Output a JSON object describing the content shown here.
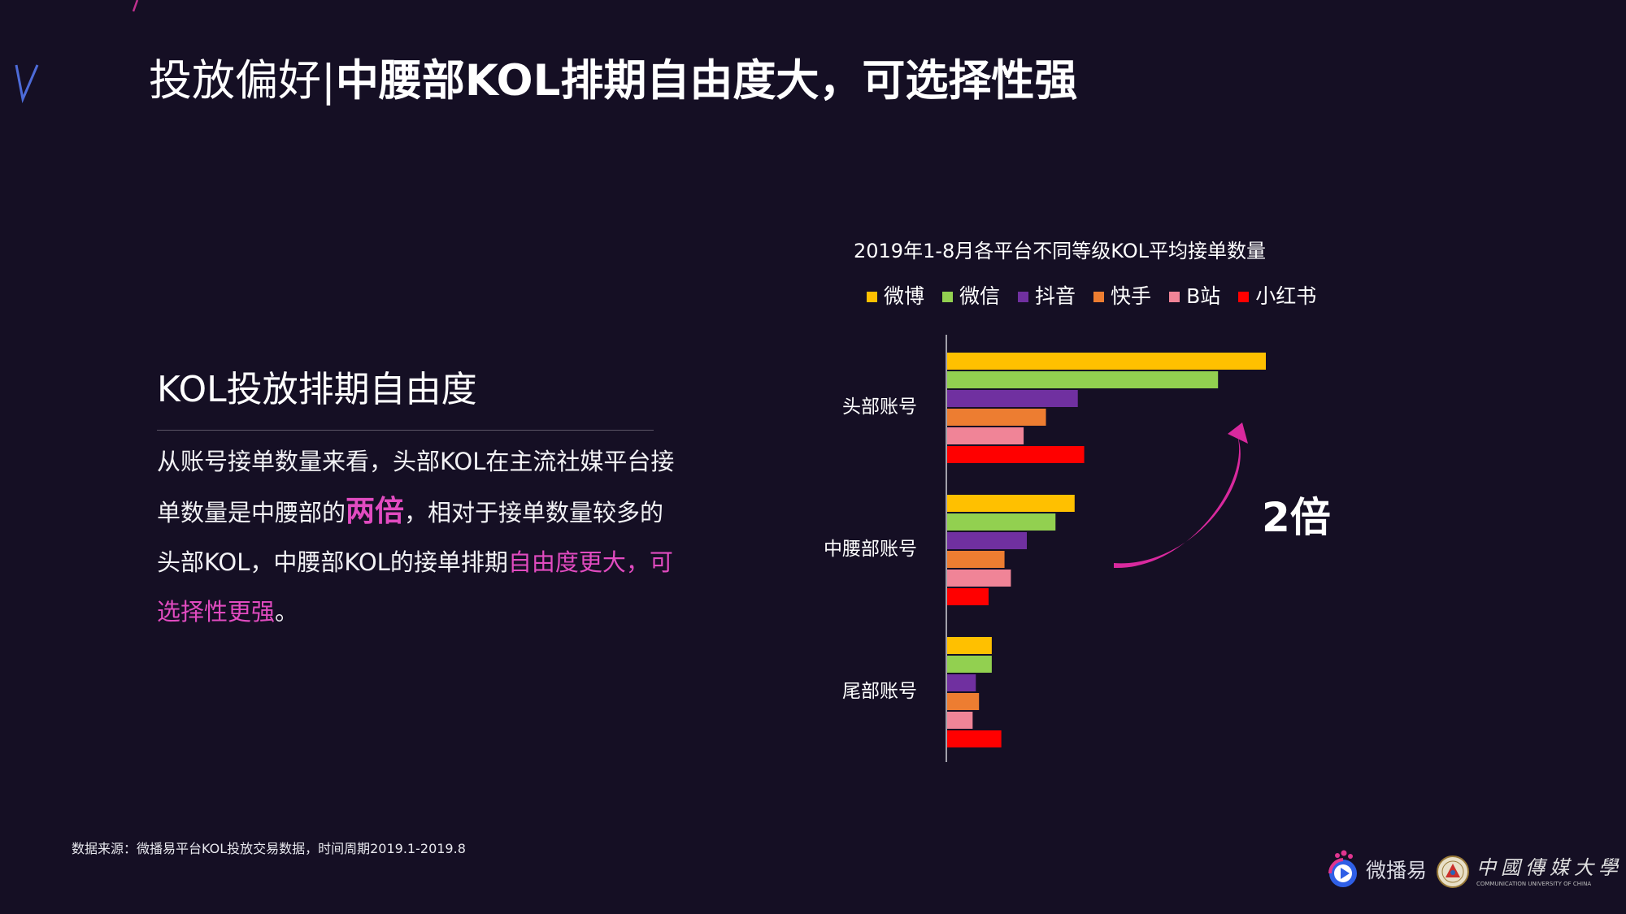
{
  "title": {
    "prefix": "投放偏好|",
    "main": "中腰部KOL排期自由度大，可选择性强"
  },
  "section": {
    "heading": "KOL投放排期自由度",
    "text_1": "从账号接单数量来看，头部KOL在主流社媒平台接单数量是中腰部的",
    "highlight_1": "两倍",
    "text_2": "，相对于接单数量较多的头部KOL，中腰部KOL的接单排期",
    "highlight_2": "自由度更大，可选择性更强",
    "text_3": "。"
  },
  "annotation": {
    "multiplier": "2倍",
    "arrow_color": "#d9299e"
  },
  "source": "数据来源：微播易平台KOL投放交易数据，时间周期2019.1-2019.8",
  "logos": {
    "weiboyi": "微播易",
    "cuc_cn": "中國傳媒大學",
    "cuc_en": "COMMUNICATION UNIVERSITY OF CHINA"
  },
  "icons": [
    "weiboyi-logo-icon",
    "cuc-seal-icon"
  ],
  "chart_data": {
    "type": "bar",
    "orientation": "horizontal",
    "title": "2019年1-8月各平台不同等级KOL平均接单数量",
    "categories": [
      "头部账号",
      "中腰部账号",
      "尾部账号"
    ],
    "xlim": [
      0,
      100
    ],
    "axis_labels_shown": false,
    "legend_position": "top",
    "series": [
      {
        "name": "微博",
        "color": "#ffc000",
        "values": [
          100,
          40,
          14
        ]
      },
      {
        "name": "微信",
        "color": "#92d050",
        "values": [
          85,
          34,
          14
        ]
      },
      {
        "name": "抖音",
        "color": "#7030a0",
        "values": [
          41,
          25,
          9
        ]
      },
      {
        "name": "快手",
        "color": "#ed7d31",
        "values": [
          31,
          18,
          10
        ]
      },
      {
        "name": "B站",
        "color": "#f08497",
        "values": [
          24,
          20,
          8
        ]
      },
      {
        "name": "小红书",
        "color": "#ff0000",
        "values": [
          43,
          13,
          17
        ]
      }
    ]
  }
}
